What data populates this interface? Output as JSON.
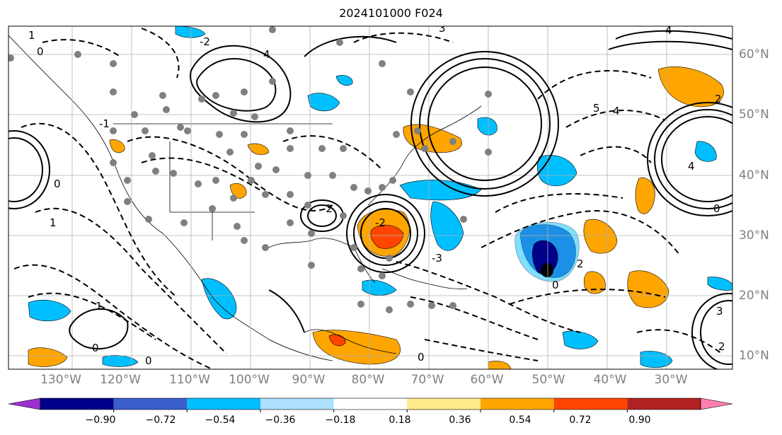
{
  "title": "2024101000 F024",
  "lon_labels": [
    "130°W",
    "120°W",
    "110°W",
    "100°W",
    "90°W",
    "80°W",
    "70°W",
    "60°W",
    "50°W",
    "40°W",
    "30°W"
  ],
  "lat_labels": [
    "60°N",
    "50°N",
    "40°N",
    "30°N",
    "20°N",
    "10°N"
  ],
  "colorbar": {
    "colors": [
      "#9b30d0",
      "#00008b",
      "#3a5fcd",
      "#00bfff",
      "#aee0ff",
      "#ffffff",
      "#ffe98a",
      "#ffa500",
      "#ff4500",
      "#b22222",
      "#ff7fb0"
    ],
    "labels": [
      "−0.90",
      "−0.72",
      "−0.54",
      "−0.36",
      "−0.18",
      "0.18",
      "0.36",
      "0.54",
      "0.72",
      "0.90"
    ]
  },
  "contour_labels": [
    "0",
    "1",
    "-1",
    "2",
    "-2",
    "3",
    "-3",
    "4",
    "-4"
  ]
}
